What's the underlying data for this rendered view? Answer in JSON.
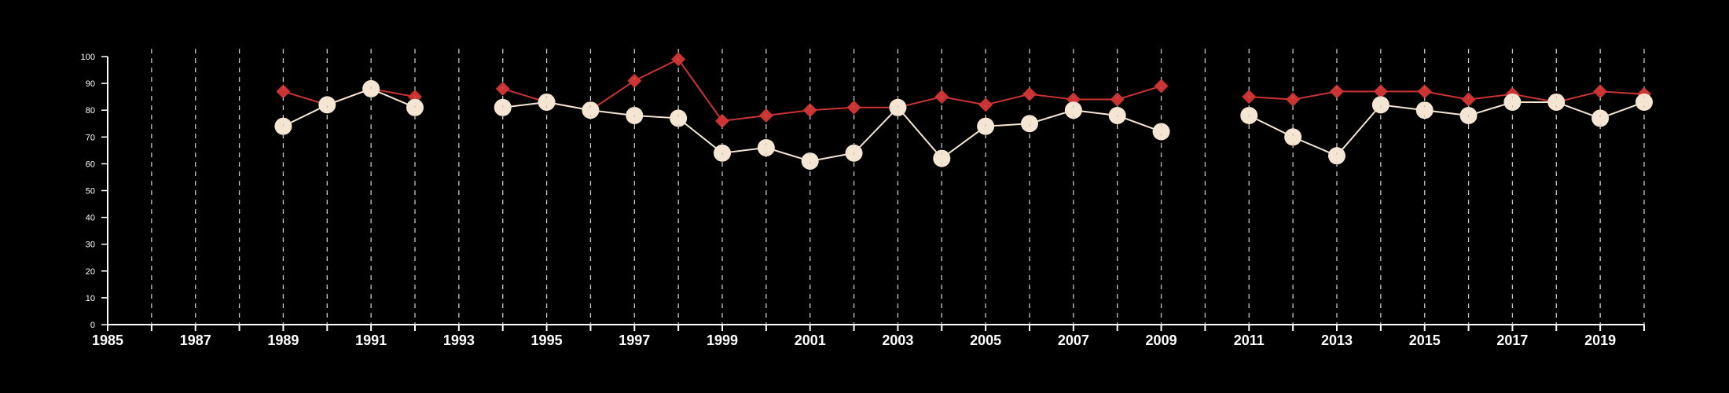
{
  "chart_data": {
    "type": "line",
    "title": "",
    "xlabel": "",
    "ylabel": "",
    "xlim": [
      1985,
      2020
    ],
    "ylim": [
      0,
      100
    ],
    "x_ticks": [
      1985,
      1987,
      1989,
      1991,
      1993,
      1995,
      1997,
      1999,
      2001,
      2003,
      2005,
      2007,
      2009,
      2011,
      2013,
      2015,
      2017,
      2019
    ],
    "x_tick_labels": [
      "1985",
      "1987",
      "1989",
      "1991",
      "1993",
      "1995",
      "1997",
      "1999",
      "2001",
      "2003",
      "2005",
      "2007",
      "2009",
      "2011",
      "2013",
      "2015",
      "2017",
      "2019"
    ],
    "y_ticks": [
      0,
      10,
      20,
      30,
      40,
      50,
      60,
      70,
      80,
      90,
      100
    ],
    "y_tick_labels": [
      "0",
      "10",
      "20",
      "30",
      "40",
      "50",
      "60",
      "70",
      "80",
      "90",
      "100"
    ],
    "grid": "vertical dashed lines at every year",
    "legend": "none",
    "x": [
      1985,
      1986,
      1987,
      1988,
      1989,
      1990,
      1991,
      1992,
      1993,
      1994,
      1995,
      1996,
      1997,
      1998,
      1999,
      2000,
      2001,
      2002,
      2003,
      2004,
      2005,
      2006,
      2007,
      2008,
      2009,
      2010,
      2011,
      2012,
      2013,
      2014,
      2015,
      2016,
      2017,
      2018,
      2019,
      2020
    ],
    "series": [
      {
        "marker": "diamond",
        "color": "#cc3333",
        "values": [
          null,
          null,
          null,
          null,
          87,
          82,
          88,
          85,
          null,
          88,
          83,
          80,
          91,
          99,
          76,
          78,
          80,
          81,
          81,
          85,
          82,
          86,
          84,
          84,
          89,
          null,
          85,
          84,
          87,
          87,
          87,
          84,
          86,
          83,
          87,
          86
        ]
      },
      {
        "marker": "circle",
        "color": "#f5e6d3",
        "values": [
          null,
          null,
          null,
          null,
          74,
          82,
          88,
          81,
          null,
          81,
          83,
          80,
          78,
          77,
          64,
          66,
          61,
          64,
          81,
          62,
          74,
          75,
          80,
          78,
          72,
          null,
          78,
          70,
          63,
          82,
          80,
          78,
          83,
          83,
          77,
          83
        ]
      }
    ]
  }
}
